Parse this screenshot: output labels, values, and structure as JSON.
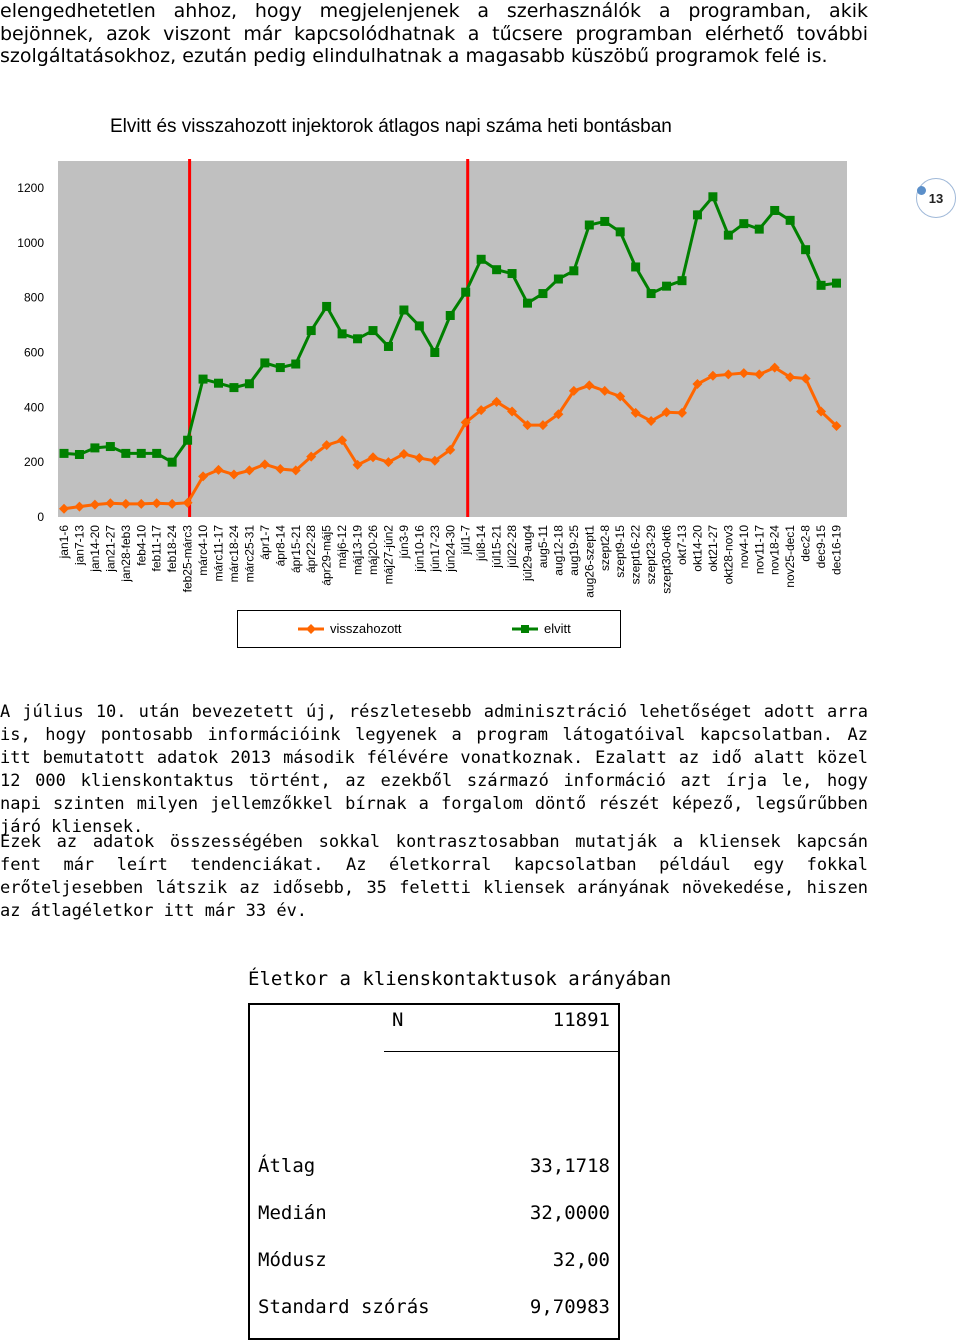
{
  "intro_paragraph": "elengedhetetlen ahhoz, hogy megjelenjenek a szerhasználók a programban, akik bejönnek, azok viszont már kapcsolódhatnak a tűcsere programban elérhető további szolgáltatásokhoz, ezután pedig elindulhatnak a magasabb küszöbű programok felé is.",
  "page_number": "13",
  "chart_data": {
    "type": "line",
    "title": "Elvitt és visszahozott injektorok átlagos napi száma heti bontásban",
    "ylim": [
      0,
      1200
    ],
    "yticks": [
      0,
      200,
      400,
      600,
      800,
      1000,
      1200
    ],
    "grid": false,
    "legend_position": "bottom",
    "categories": [
      "jan1-6",
      "jan7-13",
      "jan14-20",
      "jan21-27",
      "jan28-feb3",
      "feb4-10",
      "feb11-17",
      "feb18-24",
      "feb25-márc3",
      "márc4-10",
      "márc11-17",
      "márc18-24",
      "márc25-31",
      "ápr1-7",
      "ápr8-14",
      "ápr15-21",
      "ápr22-28",
      "ápr29-máj5",
      "máj6-12",
      "máj13-19",
      "máj20-26",
      "máj27-jún2",
      "jún3-9",
      "jún10-16",
      "jún17-23",
      "jún24-30",
      "júl1-7",
      "júl8-14",
      "júl15-21",
      "júl22-28",
      "júl29-aug4",
      "aug5-11",
      "aug12-18",
      "aug19-25",
      "aug26-szept1",
      "szept2-8",
      "szept9-15",
      "szept16-22",
      "szept23-29",
      "szept30-okt6",
      "okt7-13",
      "okt14-20",
      "okt21-27",
      "okt28-nov3",
      "nov4-10",
      "nov11-17",
      "nov18-24",
      "nov25-dec1",
      "dec2-8",
      "dec9-15",
      "dec16-19"
    ],
    "series": [
      {
        "name": "visszahozott",
        "color": "#ff6600",
        "marker": "diamond",
        "values": [
          30,
          38,
          45,
          50,
          48,
          48,
          50,
          48,
          52,
          148,
          172,
          155,
          170,
          192,
          175,
          170,
          220,
          262,
          280,
          190,
          218,
          200,
          230,
          215,
          205,
          245,
          345,
          390,
          420,
          385,
          335,
          335,
          375,
          460,
          480,
          460,
          440,
          380,
          350,
          382,
          380,
          485,
          515,
          520,
          525,
          520,
          545,
          510,
          505,
          385,
          332
        ]
      },
      {
        "name": "elvitt",
        "color": "#008000",
        "marker": "square",
        "values": [
          232,
          228,
          252,
          257,
          232,
          232,
          232,
          200,
          280,
          503,
          488,
          472,
          486,
          562,
          545,
          558,
          680,
          768,
          668,
          650,
          680,
          622,
          755,
          697,
          600,
          735,
          820,
          940,
          902,
          888,
          780,
          815,
          868,
          898,
          1065,
          1078,
          1040,
          912,
          815,
          842,
          862,
          1102,
          1168,
          1028,
          1070,
          1050,
          1118,
          1082,
          975,
          845,
          853
        ]
      }
    ],
    "markers_red_vertical": [
      "feb25-márc3",
      "júl1-7"
    ]
  },
  "paragraph2": "A július 10. után bevezetett új, részletesebb adminisztráció lehetőséget adott arra is, hogy pontosabb információink legyenek a program látogatóival kapcsolatban. Az itt bemutatott adatok 2013 második félévére vonatkoznak. Ezalatt az idő alatt közel 12 000 klienskontaktus történt, az ezekből származó információ azt írja le, hogy napi szinten milyen jellemzőkkel bírnak a forgalom döntő részét képező, legsűrűbben járó kliensek.",
  "paragraph3": "Ezek az adatok összességében sokkal kontrasztosabban mutatják a kliensek kapcsán fent már leírt tendenciákat. Az életkorral kapcsolatban például egy fokkal erőteljesebben látszik az idősebb, 35 feletti kliensek arányának növekedése, hiszen az átlagéletkor itt már 33 év.",
  "stats_table": {
    "title": "Életkor a klienskontaktusok arányában",
    "n_label": "N",
    "n_value": "11891",
    "rows": [
      {
        "label": "Átlag",
        "value": "33,1718"
      },
      {
        "label": "Medián",
        "value": "32,0000"
      },
      {
        "label": "Módusz",
        "value": "32,00"
      },
      {
        "label": "Standard szórás",
        "value": "9,70983"
      }
    ]
  }
}
